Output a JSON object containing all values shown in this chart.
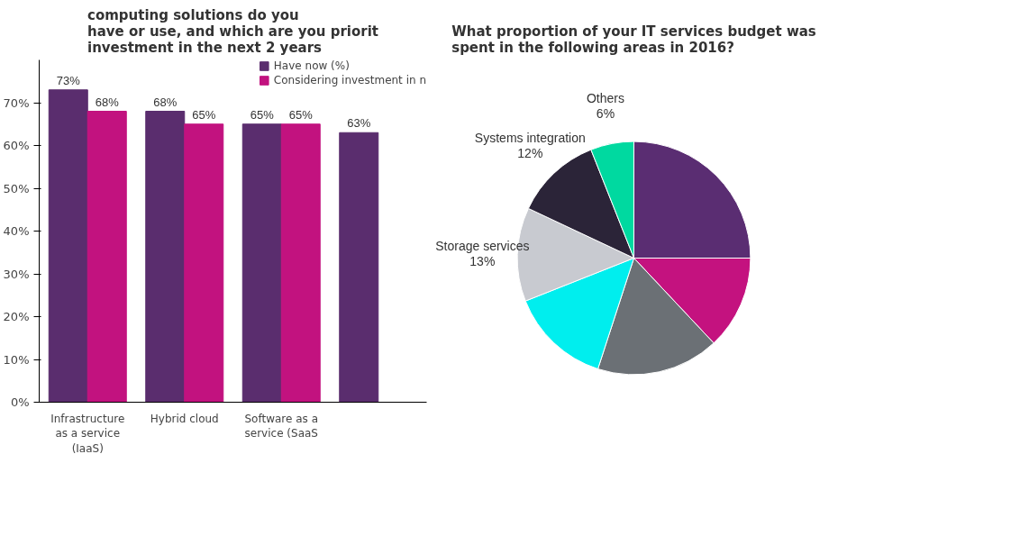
{
  "chart_data": [
    {
      "type": "bar",
      "title": "computing solutions do you\nhave or use, and which are you priorit\ninvestment in the next 2 years",
      "categories": [
        "Infrastructure as a service (IaaS)",
        "Hybrid cloud",
        "Software as a service (SaaS",
        null
      ],
      "series": [
        {
          "name": "Have now (%)",
          "color": "#5a2d6e",
          "values": [
            73,
            68,
            65,
            63
          ],
          "value_labels": [
            "73%",
            "68%",
            "65%",
            "63%"
          ]
        },
        {
          "name": "Considering investment in n",
          "color": "#c2127f",
          "values": [
            68,
            65,
            65,
            null
          ],
          "value_labels": [
            "68%",
            "65%",
            "65%",
            null
          ]
        }
      ],
      "ylim": [
        0,
        80
      ],
      "yticks": [
        {
          "value": 0,
          "label": "0%"
        },
        {
          "value": 10,
          "label": "10%"
        },
        {
          "value": 20,
          "label": "20%"
        },
        {
          "value": 30,
          "label": "30%"
        },
        {
          "value": 40,
          "label": "40%"
        },
        {
          "value": 50,
          "label": "50%"
        },
        {
          "value": 60,
          "label": "60%"
        },
        {
          "value": 70,
          "label": "70%"
        }
      ],
      "legend": "top right",
      "grid": false
    },
    {
      "type": "pie",
      "title": "What proportion of your IT services budget was\nspent in the following areas in 2016?",
      "categories": [
        null,
        null,
        null,
        null,
        "Storage services",
        "Systems integration",
        "Others"
      ],
      "values": [
        25,
        13,
        17,
        14,
        13,
        12,
        6
      ],
      "value_labels": [
        null,
        null,
        null,
        null,
        "13%",
        "12%",
        "6%"
      ],
      "colors": [
        "#5a2d72",
        "#c4127f",
        "#6b7075",
        "#00eeee",
        "#c8cad0",
        "#2b2438",
        "#00d9a0"
      ]
    }
  ]
}
